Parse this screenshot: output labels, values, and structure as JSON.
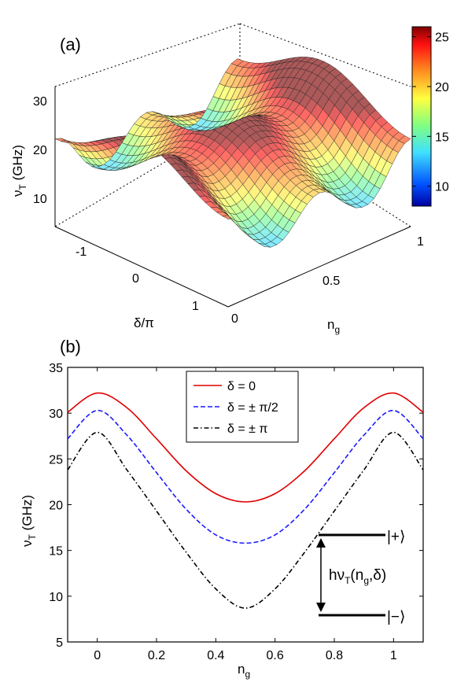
{
  "panel_a": {
    "label": "(a)",
    "zlabel_main": "ν",
    "zlabel_sub": "T",
    "zlabel_unit": " (GHz)",
    "xlabel": "δ/π",
    "ylabel_main": "n",
    "ylabel_sub": "g",
    "ztick_labels": [
      "10",
      "20",
      "30"
    ],
    "xtick_labels": [
      "-1",
      "0",
      "1"
    ],
    "ytick_labels": [
      "0",
      "0.5",
      "1"
    ],
    "colorbar_ticks": [
      "10",
      "15",
      "20",
      "25"
    ]
  },
  "panel_b": {
    "label": "(b)",
    "ylabel_main": "ν",
    "ylabel_sub": "T",
    "ylabel_unit": " (GHz)",
    "xlabel_main": "n",
    "xlabel_sub": "g",
    "inset": {
      "upper_state": "|+⟩",
      "lower_state": "|−⟩",
      "energy_main": "hν",
      "energy_sub": "T",
      "energy_args": "(n",
      "energy_args_sub": "g",
      "energy_tail": ",δ)"
    }
  },
  "chart_data": [
    {
      "type": "surface",
      "xlabel": "δ/π",
      "ylabel": "n_g",
      "zlabel": "ν_T (GHz)",
      "xlim": [
        -1,
        1
      ],
      "ylim": [
        0,
        1
      ],
      "zlim": [
        5,
        35
      ],
      "zticks": [
        10,
        20,
        30
      ],
      "xticks": [
        -1,
        0,
        1
      ],
      "yticks": [
        0,
        0.5,
        1
      ],
      "colorbar": {
        "range": [
          8,
          26
        ],
        "ticks": [
          10,
          15,
          20,
          25
        ]
      },
      "grid": true
    },
    {
      "type": "line",
      "xlabel": "n_g",
      "ylabel": "ν_T (GHz)",
      "xlim": [
        -0.1,
        1.1
      ],
      "ylim": [
        5,
        35
      ],
      "xticks": [
        0,
        0.2,
        0.4,
        0.6,
        0.8,
        1
      ],
      "xtick_labels": [
        "0",
        "0.2",
        "0.4",
        "0.6",
        "0.8",
        "1"
      ],
      "yticks": [
        5,
        10,
        15,
        20,
        25,
        30,
        35
      ],
      "ytick_labels": [
        "5",
        "10",
        "15",
        "20",
        "25",
        "30",
        "35"
      ],
      "legend_position": "top-center",
      "series": [
        {
          "name": "δ = 0",
          "color": "#e00000",
          "dash": "solid",
          "x": [
            -0.1,
            0,
            0.1,
            0.2,
            0.3,
            0.4,
            0.5,
            0.6,
            0.7,
            0.8,
            0.9,
            1,
            1.1
          ],
          "y": [
            30.1,
            32.2,
            30.6,
            27.2,
            23.7,
            21.2,
            20.3,
            21.2,
            23.7,
            27.2,
            30.6,
            32.2,
            30.1
          ]
        },
        {
          "name": "δ = ± π/2",
          "color": "#1a1aff",
          "dash": "dashed",
          "x": [
            -0.1,
            0,
            0.1,
            0.2,
            0.3,
            0.4,
            0.5,
            0.6,
            0.7,
            0.8,
            0.9,
            1,
            1.1
          ],
          "y": [
            27.2,
            30.3,
            27.6,
            23.5,
            19.5,
            16.7,
            15.8,
            16.7,
            19.5,
            23.5,
            27.6,
            30.3,
            27.2
          ]
        },
        {
          "name": "δ = ± π",
          "color": "#000000",
          "dash": "dashdot",
          "x": [
            -0.1,
            0,
            0.1,
            0.2,
            0.3,
            0.4,
            0.5,
            0.6,
            0.7,
            0.8,
            0.9,
            1,
            1.1
          ],
          "y": [
            23.8,
            27.9,
            23.8,
            19.3,
            14.8,
            10.8,
            8.7,
            10.8,
            14.8,
            19.3,
            23.8,
            27.9,
            23.8
          ]
        }
      ]
    }
  ]
}
